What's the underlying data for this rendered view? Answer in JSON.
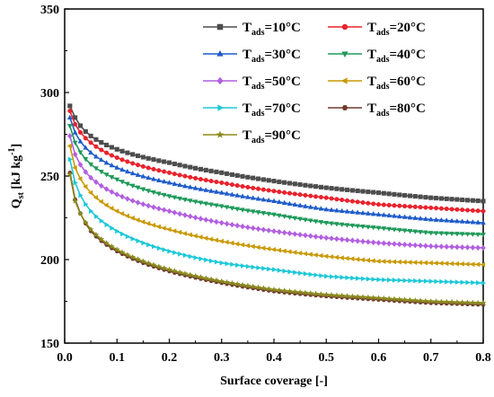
{
  "chart_data": {
    "type": "line",
    "xlabel": "Surface coverage [-]",
    "ylabel_main": "Q",
    "ylabel_sub": "st",
    "ylabel_unit": " [kJ kg",
    "ylabel_exp": "-1",
    "ylabel_close": "]",
    "xlim": [
      0.0,
      0.8
    ],
    "ylim": [
      150,
      350
    ],
    "xticks": [
      "0.0",
      "0.1",
      "0.2",
      "0.3",
      "0.4",
      "0.5",
      "0.6",
      "0.7",
      "0.8"
    ],
    "yticks": [
      "150",
      "200",
      "250",
      "300",
      "350"
    ],
    "grid": false,
    "legend_position": "top-right",
    "series": [
      {
        "name_main": "T",
        "name_sub": "ads",
        "name_rest": "=10°C",
        "color": "#4d4d4d",
        "marker": "square",
        "x": [
          0.01,
          0.02,
          0.05,
          0.1,
          0.2,
          0.3,
          0.4,
          0.5,
          0.6,
          0.7,
          0.8
        ],
        "y": [
          292,
          285,
          274,
          266,
          258,
          252,
          247,
          243,
          240,
          237,
          235
        ]
      },
      {
        "name_main": "T",
        "name_sub": "ads",
        "name_rest": "=20°C",
        "color": "#e8232d",
        "marker": "circle",
        "x": [
          0.01,
          0.02,
          0.05,
          0.1,
          0.2,
          0.3,
          0.4,
          0.5,
          0.6,
          0.7,
          0.8
        ],
        "y": [
          289,
          281,
          270,
          261,
          252,
          246,
          241,
          237,
          233,
          231,
          229
        ]
      },
      {
        "name_main": "T",
        "name_sub": "ads",
        "name_rest": "=30°C",
        "color": "#1f5cc9",
        "marker": "triangle-up",
        "x": [
          0.01,
          0.02,
          0.05,
          0.1,
          0.2,
          0.3,
          0.4,
          0.5,
          0.6,
          0.7,
          0.8
        ],
        "y": [
          285,
          276,
          264,
          255,
          246,
          240,
          235,
          230,
          227,
          224,
          222
        ]
      },
      {
        "name_main": "T",
        "name_sub": "ads",
        "name_rest": "=40°C",
        "color": "#1f9a5a",
        "marker": "triangle-down",
        "x": [
          0.01,
          0.02,
          0.05,
          0.1,
          0.2,
          0.3,
          0.4,
          0.5,
          0.6,
          0.7,
          0.8
        ],
        "y": [
          280,
          270,
          257,
          248,
          238,
          232,
          227,
          222,
          219,
          216,
          215
        ]
      },
      {
        "name_main": "T",
        "name_sub": "ads",
        "name_rest": "=50°C",
        "color": "#b25fe0",
        "marker": "diamond",
        "x": [
          0.01,
          0.02,
          0.05,
          0.1,
          0.2,
          0.3,
          0.4,
          0.5,
          0.6,
          0.7,
          0.8
        ],
        "y": [
          274,
          263,
          249,
          239,
          229,
          222,
          217,
          213,
          210,
          208,
          207
        ]
      },
      {
        "name_main": "T",
        "name_sub": "ads",
        "name_rest": "=60°C",
        "color": "#c99a06",
        "marker": "triangle-left",
        "x": [
          0.01,
          0.02,
          0.05,
          0.1,
          0.2,
          0.3,
          0.4,
          0.5,
          0.6,
          0.7,
          0.8
        ],
        "y": [
          268,
          255,
          240,
          229,
          218,
          211,
          206,
          202,
          199,
          198,
          197
        ]
      },
      {
        "name_main": "T",
        "name_sub": "ads",
        "name_rest": "=70°C",
        "color": "#1ec8d8",
        "marker": "triangle-right",
        "x": [
          0.01,
          0.02,
          0.05,
          0.1,
          0.2,
          0.3,
          0.4,
          0.5,
          0.6,
          0.7,
          0.8
        ],
        "y": [
          260,
          246,
          229,
          217,
          205,
          198,
          194,
          190,
          188,
          187,
          186
        ]
      },
      {
        "name_main": "T",
        "name_sub": "ads",
        "name_rest": "=80°C",
        "color": "#6e3b2c",
        "marker": "hexagon",
        "x": [
          0.01,
          0.02,
          0.05,
          0.1,
          0.2,
          0.3,
          0.4,
          0.5,
          0.6,
          0.7,
          0.8
        ],
        "y": [
          252,
          236,
          217,
          205,
          193,
          186,
          181,
          178,
          176,
          174,
          173
        ]
      },
      {
        "name_main": "T",
        "name_sub": "ads",
        "name_rest": "=90°C",
        "color": "#8a8a1a",
        "marker": "star",
        "x": [
          0.01,
          0.02,
          0.05,
          0.1,
          0.2,
          0.3,
          0.4,
          0.5,
          0.6,
          0.7,
          0.8
        ],
        "y": [
          251,
          235,
          218,
          206,
          194,
          187,
          182,
          179,
          177,
          175,
          174
        ]
      }
    ]
  }
}
